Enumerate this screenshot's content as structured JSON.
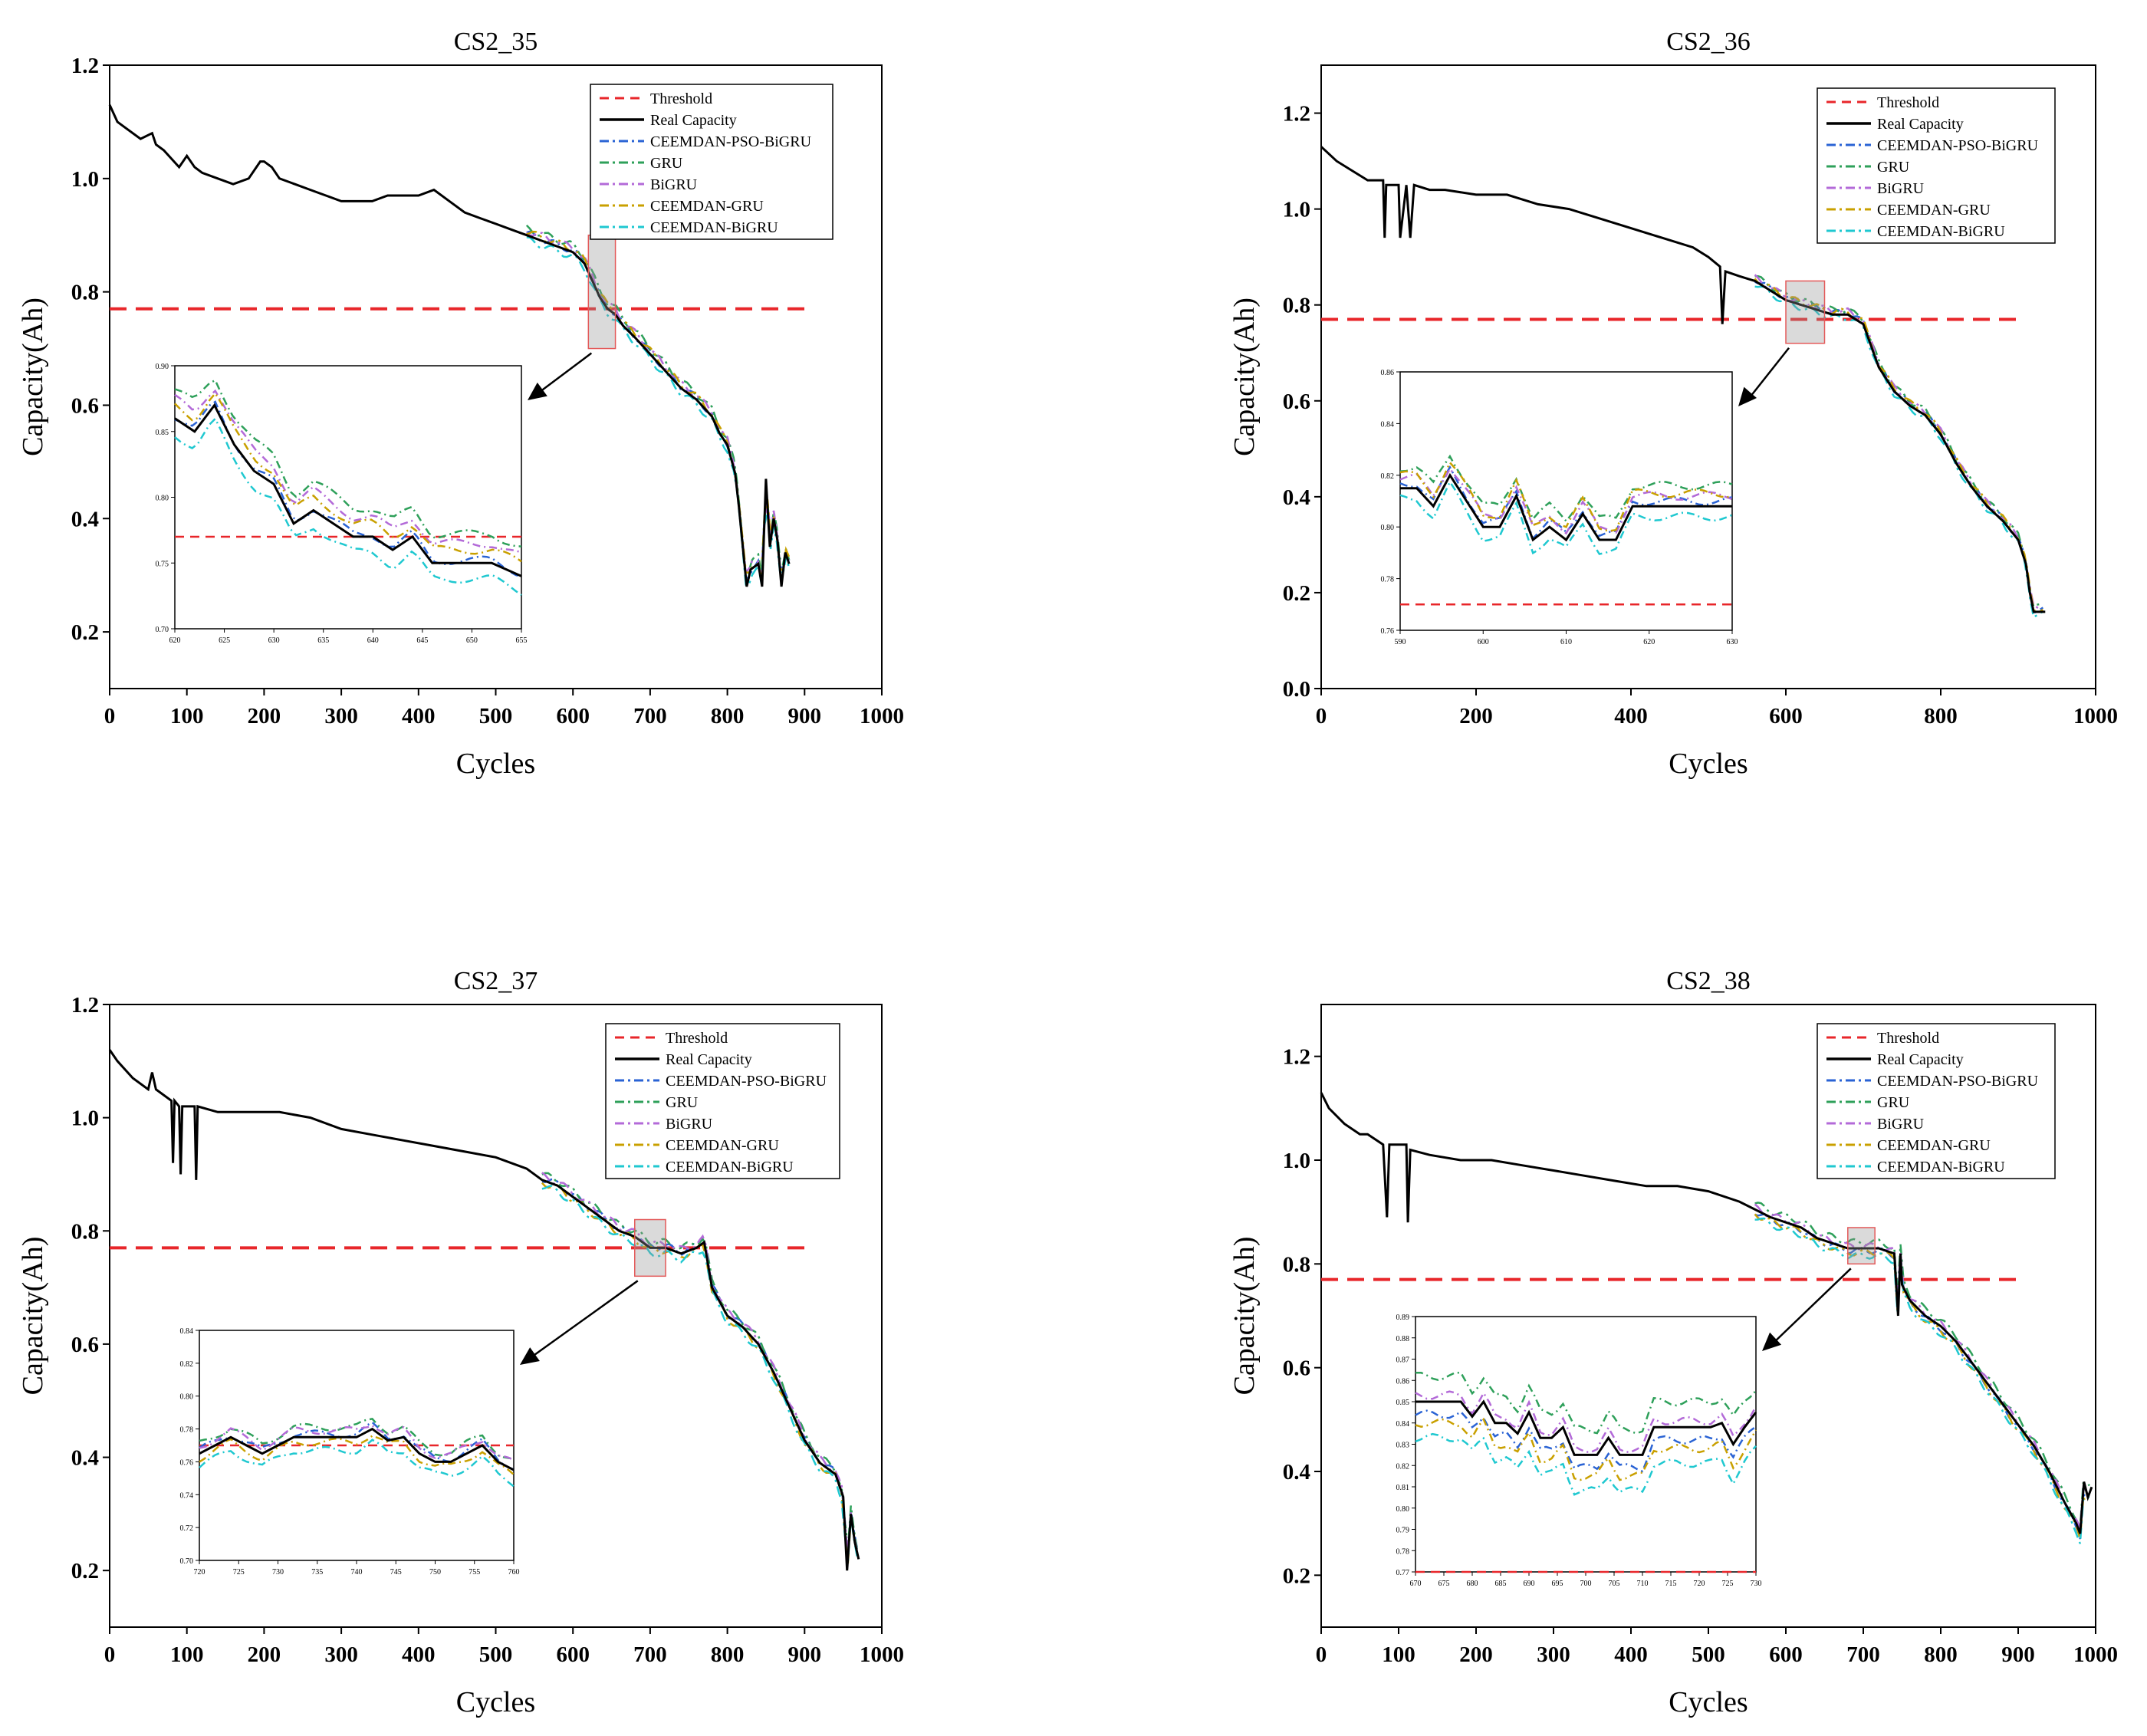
{
  "colors": {
    "Threshold": "#e8262a",
    "Real Capacity": "#000000",
    "CEEMDAN-PSO-BiGRU": "#2a63d4",
    "GRU": "#2ea05a",
    "BiGRU": "#b36ad8",
    "CEEMDAN-GRU": "#c9a000",
    "CEEMDAN-BiGRU": "#1fc8d0"
  },
  "chart_data": [
    {
      "type": "line",
      "title": "CS2_35",
      "xlabel": "Cycles",
      "ylabel": "Capacity(Ah)",
      "xlim": [
        0,
        1000
      ],
      "ylim": [
        0.1,
        1.2
      ],
      "xticks": [
        "0",
        "100",
        "200",
        "300",
        "400",
        "500",
        "600",
        "700",
        "800",
        "900",
        "1000"
      ],
      "yticks": [
        "0.2",
        "0.4",
        "0.6",
        "0.8",
        "1.0",
        "1.2"
      ],
      "threshold": 0.77,
      "legend": [
        "Threshold",
        "Real Capacity",
        "CEEMDAN-PSO-BiGRU",
        "GRU",
        "BiGRU",
        "CEEMDAN-GRU",
        "CEEMDAN-BiGRU"
      ],
      "legend_position": "top-right",
      "prediction_start": 540,
      "real_capacity": {
        "x": [
          0,
          10,
          20,
          40,
          55,
          60,
          70,
          90,
          100,
          110,
          120,
          140,
          160,
          180,
          195,
          200,
          210,
          220,
          240,
          260,
          280,
          300,
          320,
          340,
          360,
          380,
          400,
          420,
          440,
          460,
          480,
          500,
          520,
          540,
          560,
          580,
          600,
          615,
          625,
          635,
          645,
          655,
          665,
          680,
          700,
          720,
          740,
          760,
          780,
          790,
          800,
          810,
          815,
          820,
          825,
          830,
          840,
          845,
          850,
          855,
          860,
          865,
          870,
          875,
          880
        ],
        "y": [
          1.13,
          1.1,
          1.09,
          1.07,
          1.08,
          1.06,
          1.05,
          1.02,
          1.04,
          1.02,
          1.01,
          1.0,
          0.99,
          1.0,
          1.03,
          1.03,
          1.02,
          1.0,
          0.99,
          0.98,
          0.97,
          0.96,
          0.96,
          0.96,
          0.97,
          0.97,
          0.97,
          0.98,
          0.96,
          0.94,
          0.93,
          0.92,
          0.91,
          0.9,
          0.89,
          0.88,
          0.87,
          0.85,
          0.82,
          0.79,
          0.77,
          0.76,
          0.74,
          0.72,
          0.69,
          0.66,
          0.63,
          0.61,
          0.58,
          0.55,
          0.53,
          0.48,
          0.42,
          0.35,
          0.28,
          0.31,
          0.32,
          0.28,
          0.47,
          0.35,
          0.4,
          0.36,
          0.28,
          0.34,
          0.32
        ]
      },
      "series": [
        {
          "name": "CEEMDAN-PSO-BiGRU",
          "offset": 0.003
        },
        {
          "name": "GRU",
          "offset": 0.012
        },
        {
          "name": "BiGRU",
          "offset": 0.008
        },
        {
          "name": "CEEMDAN-GRU",
          "offset": 0.006
        },
        {
          "name": "CEEMDAN-BiGRU",
          "offset": -0.008
        }
      ],
      "zoom_window": {
        "x": [
          620,
          655
        ],
        "y": [
          0.7,
          0.9
        ]
      },
      "inset": {
        "xlim": [
          620,
          655
        ],
        "ylim": [
          0.7,
          0.9
        ],
        "xticks": [
          "620",
          "625",
          "630",
          "635",
          "640",
          "645",
          "650",
          "655"
        ],
        "yticks": [
          "0.70",
          "0.75",
          "0.80",
          "0.85",
          "0.90"
        ],
        "threshold": 0.77,
        "real": {
          "x": [
            620,
            622,
            624,
            626,
            628,
            630,
            632,
            634,
            636,
            638,
            640,
            642,
            644,
            646,
            648,
            650,
            652,
            655
          ],
          "y": [
            0.86,
            0.85,
            0.87,
            0.84,
            0.82,
            0.81,
            0.78,
            0.79,
            0.78,
            0.77,
            0.77,
            0.76,
            0.77,
            0.75,
            0.75,
            0.75,
            0.75,
            0.74
          ]
        },
        "offsets": [
          0.002,
          0.022,
          0.015,
          0.01,
          -0.012
        ]
      }
    },
    {
      "type": "line",
      "title": "CS2_36",
      "xlabel": "Cycles",
      "ylabel": "Capacity(Ah)",
      "xlim": [
        0,
        1000
      ],
      "ylim": [
        0.0,
        1.3
      ],
      "xticks": [
        "0",
        "200",
        "400",
        "600",
        "800",
        "1000"
      ],
      "yticks": [
        "0.0",
        "0.2",
        "0.4",
        "0.6",
        "0.8",
        "1.0",
        "1.2"
      ],
      "threshold": 0.77,
      "legend": [
        "Threshold",
        "Real Capacity",
        "CEEMDAN-PSO-BiGRU",
        "GRU",
        "BiGRU",
        "CEEMDAN-GRU",
        "CEEMDAN-BiGRU"
      ],
      "legend_position": "top-right",
      "prediction_start": 560,
      "real_capacity": {
        "x": [
          0,
          20,
          40,
          60,
          80,
          82,
          84,
          86,
          100,
          102,
          110,
          115,
          120,
          140,
          160,
          200,
          240,
          280,
          320,
          360,
          400,
          440,
          480,
          500,
          515,
          518,
          522,
          540,
          560,
          580,
          600,
          620,
          640,
          660,
          680,
          700,
          720,
          740,
          760,
          780,
          800,
          820,
          840,
          860,
          880,
          900,
          910,
          915,
          920,
          935
        ],
        "y": [
          1.13,
          1.1,
          1.08,
          1.06,
          1.06,
          0.94,
          1.05,
          1.05,
          1.05,
          0.94,
          1.05,
          0.94,
          1.05,
          1.04,
          1.04,
          1.03,
          1.03,
          1.01,
          1.0,
          0.98,
          0.96,
          0.94,
          0.92,
          0.9,
          0.88,
          0.76,
          0.87,
          0.86,
          0.85,
          0.83,
          0.81,
          0.8,
          0.79,
          0.78,
          0.78,
          0.76,
          0.67,
          0.62,
          0.59,
          0.57,
          0.53,
          0.47,
          0.42,
          0.38,
          0.35,
          0.31,
          0.26,
          0.2,
          0.16,
          0.16
        ]
      },
      "series": [
        {
          "name": "CEEMDAN-PSO-BiGRU",
          "offset": 0.004
        },
        {
          "name": "GRU",
          "offset": 0.01
        },
        {
          "name": "BiGRU",
          "offset": 0.007
        },
        {
          "name": "CEEMDAN-GRU",
          "offset": 0.006
        },
        {
          "name": "CEEMDAN-BiGRU",
          "offset": -0.006
        }
      ],
      "zoom_window": {
        "x": [
          600,
          650
        ],
        "y": [
          0.72,
          0.85
        ]
      },
      "inset": {
        "xlim": [
          590,
          630
        ],
        "ylim": [
          0.76,
          0.86
        ],
        "xticks": [
          "590",
          "600",
          "610",
          "620",
          "630"
        ],
        "yticks": [
          "0.76",
          "0.78",
          "0.80",
          "0.82",
          "0.84",
          "0.86"
        ],
        "threshold": 0.77,
        "real": {
          "x": [
            590,
            592,
            594,
            596,
            598,
            600,
            602,
            604,
            606,
            608,
            610,
            612,
            614,
            616,
            618,
            620,
            622,
            624,
            626,
            628,
            630
          ],
          "y": [
            0.815,
            0.815,
            0.808,
            0.82,
            0.81,
            0.8,
            0.8,
            0.812,
            0.795,
            0.8,
            0.795,
            0.805,
            0.795,
            0.795,
            0.808,
            0.808,
            0.808,
            0.808,
            0.808,
            0.808,
            0.808
          ]
        },
        "offsets": [
          0.002,
          0.008,
          0.004,
          0.005,
          -0.004
        ]
      }
    },
    {
      "type": "line",
      "title": "CS2_37",
      "xlabel": "Cycles",
      "ylabel": "Capacity(Ah)",
      "xlim": [
        0,
        1000
      ],
      "ylim": [
        0.1,
        1.2
      ],
      "xticks": [
        "0",
        "100",
        "200",
        "300",
        "400",
        "500",
        "600",
        "700",
        "800",
        "900",
        "1000"
      ],
      "yticks": [
        "0.2",
        "0.4",
        "0.6",
        "0.8",
        "1.0",
        "1.2"
      ],
      "threshold": 0.77,
      "legend": [
        "Threshold",
        "Real Capacity",
        "CEEMDAN-PSO-BiGRU",
        "GRU",
        "BiGRU",
        "CEEMDAN-GRU",
        "CEEMDAN-BiGRU"
      ],
      "legend_position": "top-right",
      "prediction_start": 560,
      "real_capacity": {
        "x": [
          0,
          10,
          30,
          50,
          55,
          60,
          80,
          82,
          84,
          90,
          92,
          94,
          110,
          112,
          114,
          140,
          180,
          220,
          260,
          300,
          340,
          380,
          420,
          460,
          500,
          540,
          560,
          580,
          600,
          620,
          640,
          660,
          680,
          700,
          720,
          740,
          760,
          770,
          780,
          800,
          820,
          840,
          860,
          880,
          900,
          920,
          940,
          950,
          955,
          960,
          965,
          970
        ],
        "y": [
          1.12,
          1.1,
          1.07,
          1.05,
          1.08,
          1.05,
          1.03,
          0.92,
          1.03,
          1.02,
          0.9,
          1.02,
          1.02,
          0.89,
          1.02,
          1.01,
          1.01,
          1.01,
          1.0,
          0.98,
          0.97,
          0.96,
          0.95,
          0.94,
          0.93,
          0.91,
          0.89,
          0.88,
          0.86,
          0.84,
          0.82,
          0.8,
          0.79,
          0.77,
          0.77,
          0.76,
          0.77,
          0.78,
          0.7,
          0.65,
          0.63,
          0.6,
          0.55,
          0.49,
          0.43,
          0.39,
          0.37,
          0.33,
          0.2,
          0.3,
          0.25,
          0.22
        ]
      },
      "series": [
        {
          "name": "CEEMDAN-PSO-BiGRU",
          "offset": 0.003
        },
        {
          "name": "GRU",
          "offset": 0.01
        },
        {
          "name": "BiGRU",
          "offset": 0.007
        },
        {
          "name": "CEEMDAN-GRU",
          "offset": -0.004
        },
        {
          "name": "CEEMDAN-BiGRU",
          "offset": -0.01
        }
      ],
      "zoom_window": {
        "x": [
          680,
          720
        ],
        "y": [
          0.72,
          0.82
        ]
      },
      "inset": {
        "xlim": [
          720,
          760
        ],
        "ylim": [
          0.7,
          0.84
        ],
        "xticks": [
          "720",
          "725",
          "730",
          "735",
          "740",
          "745",
          "750",
          "755",
          "760"
        ],
        "yticks": [
          "0.70",
          "0.72",
          "0.74",
          "0.76",
          "0.78",
          "0.80",
          "0.82",
          "0.84"
        ],
        "threshold": 0.77,
        "real": {
          "x": [
            720,
            722,
            724,
            726,
            728,
            730,
            732,
            734,
            736,
            738,
            740,
            742,
            744,
            746,
            748,
            750,
            752,
            754,
            756,
            758,
            760
          ],
          "y": [
            0.765,
            0.77,
            0.775,
            0.77,
            0.765,
            0.77,
            0.775,
            0.775,
            0.775,
            0.775,
            0.775,
            0.78,
            0.773,
            0.775,
            0.765,
            0.76,
            0.76,
            0.765,
            0.77,
            0.76,
            0.755
          ]
        },
        "offsets": [
          0.002,
          0.006,
          0.004,
          -0.003,
          -0.008
        ]
      }
    },
    {
      "type": "line",
      "title": "CS2_38",
      "xlabel": "Cycles",
      "ylabel": "Capacity(Ah)",
      "xlim": [
        0,
        1000
      ],
      "ylim": [
        0.1,
        1.3
      ],
      "xticks": [
        "0",
        "100",
        "200",
        "300",
        "400",
        "500",
        "600",
        "700",
        "800",
        "900",
        "1000"
      ],
      "yticks": [
        "0.2",
        "0.4",
        "0.6",
        "0.8",
        "1.0",
        "1.2"
      ],
      "threshold": 0.77,
      "legend": [
        "Threshold",
        "Real Capacity",
        "CEEMDAN-PSO-BiGRU",
        "GRU",
        "BiGRU",
        "CEEMDAN-GRU",
        "CEEMDAN-BiGRU"
      ],
      "legend_position": "top-right",
      "prediction_start": 560,
      "real_capacity": {
        "x": [
          0,
          10,
          30,
          50,
          60,
          80,
          85,
          88,
          90,
          110,
          112,
          115,
          140,
          180,
          220,
          260,
          300,
          340,
          380,
          420,
          460,
          500,
          540,
          580,
          600,
          620,
          640,
          660,
          680,
          700,
          720,
          740,
          745,
          748,
          750,
          760,
          780,
          800,
          820,
          840,
          860,
          880,
          900,
          920,
          940,
          960,
          975,
          980,
          985,
          990,
          995
        ],
        "y": [
          1.13,
          1.1,
          1.07,
          1.05,
          1.05,
          1.03,
          0.89,
          1.03,
          1.03,
          1.03,
          0.88,
          1.02,
          1.01,
          1.0,
          1.0,
          0.99,
          0.98,
          0.97,
          0.96,
          0.95,
          0.95,
          0.94,
          0.92,
          0.89,
          0.88,
          0.87,
          0.85,
          0.84,
          0.83,
          0.83,
          0.83,
          0.82,
          0.7,
          0.82,
          0.76,
          0.73,
          0.7,
          0.68,
          0.65,
          0.61,
          0.57,
          0.53,
          0.49,
          0.45,
          0.4,
          0.34,
          0.3,
          0.28,
          0.38,
          0.35,
          0.37
        ]
      },
      "series": [
        {
          "name": "CEEMDAN-PSO-BiGRU",
          "offset": -0.004
        },
        {
          "name": "GRU",
          "offset": 0.012
        },
        {
          "name": "BiGRU",
          "offset": 0.004
        },
        {
          "name": "CEEMDAN-GRU",
          "offset": -0.008
        },
        {
          "name": "CEEMDAN-BiGRU",
          "offset": -0.014
        }
      ],
      "zoom_window": {
        "x": [
          680,
          715
        ],
        "y": [
          0.8,
          0.87
        ]
      },
      "inset": {
        "xlim": [
          670,
          730
        ],
        "ylim": [
          0.77,
          0.89
        ],
        "xticks": [
          "670",
          "675",
          "680",
          "685",
          "690",
          "695",
          "700",
          "705",
          "710",
          "715",
          "720",
          "725",
          "730"
        ],
        "yticks": [
          "0.77",
          "0.78",
          "0.79",
          "0.80",
          "0.81",
          "0.82",
          "0.83",
          "0.84",
          "0.85",
          "0.86",
          "0.87",
          "0.88",
          "0.89"
        ],
        "threshold": 0.77,
        "real": {
          "x": [
            670,
            674,
            678,
            680,
            682,
            684,
            686,
            688,
            690,
            692,
            694,
            696,
            698,
            700,
            702,
            704,
            706,
            708,
            710,
            712,
            714,
            716,
            718,
            720,
            722,
            724,
            726,
            728,
            730
          ],
          "y": [
            0.85,
            0.85,
            0.85,
            0.843,
            0.85,
            0.84,
            0.84,
            0.835,
            0.845,
            0.833,
            0.833,
            0.838,
            0.825,
            0.825,
            0.825,
            0.833,
            0.825,
            0.825,
            0.825,
            0.838,
            0.838,
            0.838,
            0.838,
            0.838,
            0.838,
            0.84,
            0.83,
            0.838,
            0.845
          ]
        },
        "offsets": [
          -0.006,
          0.012,
          0.003,
          -0.01,
          -0.017
        ]
      }
    }
  ]
}
